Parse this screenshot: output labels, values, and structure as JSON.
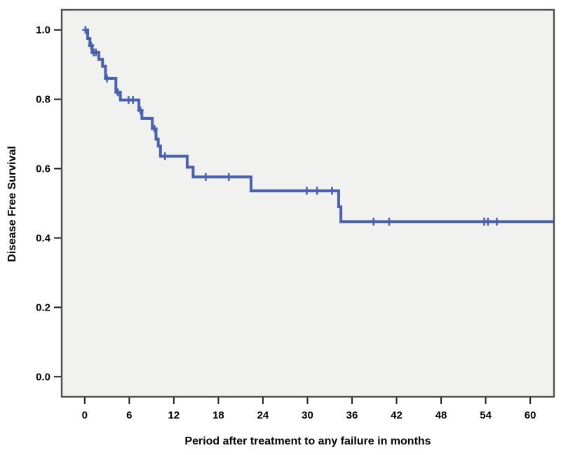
{
  "figure": {
    "background": "#ffffff",
    "text_color": "#000000"
  },
  "chart_data": {
    "type": "line",
    "subtype": "kaplan-meier-step",
    "title": "",
    "xlabel": "Period after treatment to any failure in months",
    "ylabel": "Disease Free Survival",
    "xlim": [
      -3.1,
      63.2
    ],
    "ylim": [
      -0.058,
      1.058
    ],
    "x_ticks": [
      0,
      6,
      12,
      18,
      24,
      30,
      36,
      42,
      48,
      54,
      60
    ],
    "y_ticks": [
      1.0,
      0.8,
      0.6,
      0.4,
      0.2,
      0.0
    ],
    "y_tick_decimals": 1,
    "grid": false,
    "legend": "none",
    "plot_background": "#f1f1f0",
    "frame_color": "#4e4e4c",
    "tick_color": "#1a1a1a",
    "series": [
      {
        "name": "Disease Free Survival",
        "color": "#4a61ae",
        "line_width": 4,
        "steps": [
          [
            0.0,
            1.0
          ],
          [
            0.4,
            0.975
          ],
          [
            0.7,
            0.955
          ],
          [
            1.0,
            0.935
          ],
          [
            1.9,
            0.915
          ],
          [
            2.4,
            0.895
          ],
          [
            2.8,
            0.86
          ],
          [
            4.2,
            0.82
          ],
          [
            4.8,
            0.798
          ],
          [
            7.3,
            0.768
          ],
          [
            7.7,
            0.745
          ],
          [
            9.1,
            0.715
          ],
          [
            9.6,
            0.685
          ],
          [
            9.9,
            0.665
          ],
          [
            10.2,
            0.636
          ],
          [
            13.8,
            0.604
          ],
          [
            14.6,
            0.576
          ],
          [
            22.4,
            0.536
          ],
          [
            34.2,
            0.49
          ],
          [
            34.5,
            0.447
          ]
        ],
        "end_time": 63.1,
        "censor_marks": [
          [
            0.1,
            1.0
          ],
          [
            0.85,
            0.955
          ],
          [
            1.2,
            0.935
          ],
          [
            1.5,
            0.935
          ],
          [
            3.0,
            0.86
          ],
          [
            4.45,
            0.82
          ],
          [
            5.9,
            0.798
          ],
          [
            6.5,
            0.798
          ],
          [
            7.5,
            0.768
          ],
          [
            9.4,
            0.715
          ],
          [
            10.8,
            0.636
          ],
          [
            16.3,
            0.576
          ],
          [
            19.4,
            0.576
          ],
          [
            29.9,
            0.536
          ],
          [
            31.3,
            0.536
          ],
          [
            33.3,
            0.536
          ],
          [
            38.9,
            0.447
          ],
          [
            41.0,
            0.447
          ],
          [
            53.8,
            0.447
          ],
          [
            54.3,
            0.447
          ],
          [
            55.5,
            0.447
          ]
        ]
      }
    ]
  }
}
